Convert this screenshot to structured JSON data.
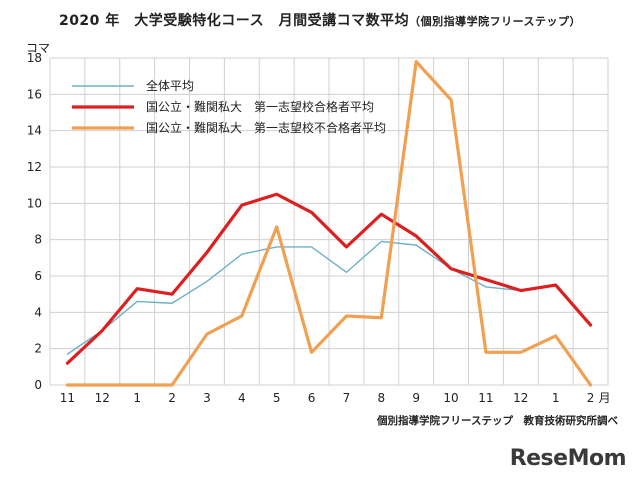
{
  "title": "2020 年　大学受験特化コース　月間受講コマ数平均",
  "subtitle": "（個別指導学院フリーステップ）",
  "source": "個別指導学院フリーステップ　教育技術研究所調べ",
  "logo": "ReseMom",
  "colors": {
    "overall": "#6fb0c8",
    "passed": "#dd1f1f",
    "failed": "#f0a050",
    "grid": "#d0d0d0"
  },
  "chart_data": {
    "type": "line",
    "ylabel": "コマ",
    "xlabel": "",
    "ylim": [
      0,
      18
    ],
    "yticks": [
      0,
      2,
      4,
      6,
      8,
      10,
      12,
      14,
      16,
      18
    ],
    "grid": true,
    "legend_position": "top-left",
    "categories": [
      "11",
      "12",
      "1",
      "2",
      "3",
      "4",
      "5",
      "6",
      "7",
      "8",
      "9",
      "10",
      "11",
      "12",
      "1",
      "2"
    ],
    "last_category_unit": "月",
    "series": [
      {
        "name": "全体平均",
        "color": "#6fb0c8",
        "values": [
          1.7,
          3.0,
          4.6,
          4.5,
          5.7,
          7.2,
          7.6,
          7.6,
          6.2,
          7.9,
          7.7,
          6.4,
          5.4,
          5.2,
          5.5,
          null
        ]
      },
      {
        "name": "国公立・難関私大　第一志望校合格者平均",
        "color": "#dd1f1f",
        "values": [
          1.2,
          3.0,
          5.3,
          5.0,
          7.3,
          9.9,
          10.5,
          9.5,
          7.6,
          9.4,
          8.2,
          6.4,
          5.8,
          5.2,
          5.5,
          3.3
        ]
      },
      {
        "name": "国公立・難関私大　第一志望校不合格者平均",
        "color": "#f0a050",
        "values": [
          0,
          0,
          0,
          0,
          2.8,
          3.8,
          8.7,
          1.8,
          3.8,
          3.7,
          17.8,
          15.7,
          1.8,
          1.8,
          2.7,
          0
        ]
      }
    ]
  }
}
